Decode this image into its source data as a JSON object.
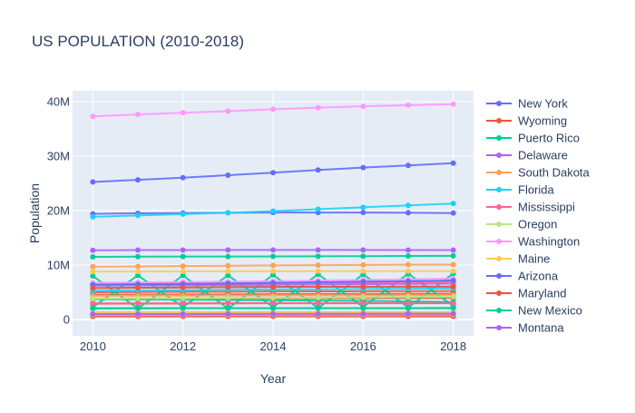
{
  "chart_data": {
    "type": "line",
    "title": "US POPULATION (2010-2018)",
    "xlabel": "Year",
    "ylabel": "Population",
    "x_range": [
      2009.55,
      2018.45
    ],
    "y_range": [
      -3000000,
      42000000
    ],
    "x_ticks": [
      {
        "value": 2010,
        "label": "2010"
      },
      {
        "value": 2012,
        "label": "2012"
      },
      {
        "value": 2014,
        "label": "2014"
      },
      {
        "value": 2016,
        "label": "2016"
      },
      {
        "value": 2018,
        "label": "2018"
      }
    ],
    "y_ticks": [
      {
        "value": 0,
        "label": "0"
      },
      {
        "value": 10000000,
        "label": "10M"
      },
      {
        "value": 20000000,
        "label": "20M"
      },
      {
        "value": 30000000,
        "label": "30M"
      },
      {
        "value": 40000000,
        "label": "40M"
      }
    ],
    "grid": true,
    "legend_position": "right",
    "x": [
      2010,
      2011,
      2012,
      2013,
      2014,
      2015,
      2016,
      2017,
      2018
    ],
    "legend": [
      "New York",
      "Wyoming",
      "Puerto Rico",
      "Delaware",
      "South Dakota",
      "Florida",
      "Mississippi",
      "Oregon",
      "Washington",
      "Maine",
      "Arizona",
      "Maryland",
      "New Mexico",
      "Montana"
    ],
    "series": [
      {
        "color": "#636efa",
        "values": [
          25250000,
          25650000,
          26050000,
          26500000,
          26950000,
          27450000,
          27900000,
          28300000,
          28700000
        ]
      },
      {
        "color": "#636efa",
        "values": [
          19400000,
          19500000,
          19550000,
          19600000,
          19650000,
          19650000,
          19650000,
          19600000,
          19550000
        ]
      },
      {
        "color": "#636efa",
        "values": [
          6400000,
          6470000,
          6550000,
          6630000,
          6730000,
          6830000,
          6930000,
          7020000,
          7150000
        ]
      },
      {
        "color": "#636efa",
        "values": [
          1340000,
          1340000,
          1335000,
          1330000,
          1330000,
          1330000,
          1335000,
          1335000,
          1340000
        ]
      },
      {
        "color": "#636efa",
        "values": [
          5770000,
          5830000,
          5880000,
          5930000,
          5970000,
          6010000,
          6030000,
          6050000,
          6050000
        ]
      },
      {
        "name": "Wyoming",
        "color": "#ef553b",
        "values": [
          560000,
          567000,
          576000,
          582000,
          584000,
          586000,
          585000,
          579000,
          578000
        ]
      },
      {
        "color": "#ef553b",
        "values": [
          5000000,
          5040000,
          5080000,
          5110000,
          5140000,
          5160000,
          5180000,
          5200000,
          5220000
        ]
      },
      {
        "color": "#ef553b",
        "values": [
          4550000,
          4570000,
          4590000,
          4610000,
          4640000,
          4660000,
          4690000,
          4710000,
          4730000
        ]
      },
      {
        "color": "#ef553b",
        "values": [
          2900000,
          2920000,
          2940000,
          2960000,
          2970000,
          2980000,
          2980000,
          2990000,
          3000000
        ]
      },
      {
        "color": "#ef553b",
        "values": [
          3830000,
          3840000,
          3850000,
          3860000,
          3880000,
          3900000,
          3920000,
          3930000,
          3950000
        ]
      },
      {
        "name": "Puerto Rico",
        "color": "#00cc96",
        "values": [
          3720000,
          3680000,
          3630000,
          3590000,
          3530000,
          3470000,
          3410000,
          3330000,
          3200000
        ]
      },
      {
        "color": "#00cc96",
        "values": [
          11500000,
          11550000,
          11560000,
          11570000,
          11590000,
          11610000,
          11630000,
          11660000,
          11690000
        ]
      },
      {
        "color": "#00cc96",
        "values": [
          2300000,
          8100000,
          2300000,
          8100000,
          2300000,
          8300000,
          2300000,
          8400000,
          2500000
        ]
      },
      {
        "color": "#00cc96",
        "values": [
          2050000,
          2070000,
          2080000,
          2085000,
          2085000,
          2085000,
          2090000,
          2090000,
          2095000
        ]
      },
      {
        "color": "#00cc96",
        "values": [
          8000000,
          2000000,
          8100000,
          2000000,
          8200000,
          2100000,
          8300000,
          2200000,
          8450000
        ]
      },
      {
        "name": "Delaware",
        "color": "#ab63fa",
        "values": [
          900000,
          907000,
          916000,
          925000,
          935000,
          944000,
          952000,
          961000,
          967000
        ]
      },
      {
        "color": "#ab63fa",
        "values": [
          12700000,
          12740000,
          12760000,
          12770000,
          12780000,
          12780000,
          12770000,
          12760000,
          12740000
        ]
      },
      {
        "color": "#ab63fa",
        "values": [
          6200000,
          6260000,
          6300000,
          6340000,
          6380000,
          6420000,
          6480000,
          6540000,
          6590000
        ]
      },
      {
        "name": "South Dakota",
        "color": "#ffa15a",
        "values": [
          815000,
          823000,
          833000,
          842000,
          849000,
          855000,
          862000,
          870000,
          882000
        ]
      },
      {
        "color": "#ffa15a",
        "values": [
          9700000,
          9760000,
          9820000,
          9880000,
          9930000,
          9980000,
          10020000,
          10060000,
          10090000
        ]
      },
      {
        "color": "#ffa15a",
        "values": [
          4340000,
          4370000,
          4380000,
          4400000,
          4410000,
          4430000,
          4440000,
          4450000,
          4470000
        ]
      },
      {
        "name": "Florida",
        "color": "#19d3f3",
        "values": [
          18850000,
          19100000,
          19350000,
          19600000,
          19900000,
          20250000,
          20600000,
          20950000,
          21300000
        ]
      },
      {
        "color": "#19d3f3",
        "values": [
          5300000,
          5350000,
          5400000,
          5450000,
          5500000,
          5550000,
          5600000,
          5650000,
          5700000
        ]
      },
      {
        "name": "Mississippi",
        "color": "#ff6692",
        "values": [
          2970000,
          2980000,
          2985000,
          2990000,
          2990000,
          2990000,
          2990000,
          2985000,
          2985000
        ]
      },
      {
        "color": "#ff6692",
        "values": [
          6550000,
          6590000,
          6620000,
          6650000,
          6680000,
          6710000,
          6740000,
          6790000,
          6830000
        ]
      },
      {
        "name": "Oregon",
        "color": "#b6e880",
        "values": [
          3840000,
          3870000,
          3900000,
          3930000,
          3970000,
          4020000,
          4090000,
          4150000,
          4190000
        ]
      },
      {
        "name": "Washington",
        "color": "#ff97ff",
        "values": [
          37300000,
          37650000,
          37950000,
          38250000,
          38600000,
          38900000,
          39150000,
          39350000,
          39550000
        ]
      },
      {
        "color": "#ff97ff",
        "values": [
          6740000,
          6820000,
          6890000,
          6960000,
          7050000,
          7160000,
          7280000,
          7400000,
          7530000
        ]
      },
      {
        "name": "Maine",
        "color": "#fecb52",
        "values": [
          1330000,
          1330000,
          1330000,
          1330000,
          1330000,
          1330000,
          1330000,
          1335000,
          1340000
        ]
      },
      {
        "color": "#fecb52",
        "values": [
          8800000,
          8820000,
          8840000,
          8850000,
          8860000,
          8870000,
          8880000,
          8880000,
          8880000
        ]
      },
      {
        "name": "Arizona",
        "color": "#636efa",
        "values": [
          6400000,
          6470000,
          6550000,
          6630000,
          6730000,
          6830000,
          6930000,
          7020000,
          7150000
        ]
      },
      {
        "name": "Maryland",
        "color": "#ef553b",
        "values": [
          5780000,
          5840000,
          5890000,
          5930000,
          5970000,
          6000000,
          6020000,
          6040000,
          6040000
        ]
      },
      {
        "name": "New Mexico",
        "color": "#00cc96",
        "values": [
          2060000,
          2070000,
          2080000,
          2085000,
          2085000,
          2085000,
          2090000,
          2090000,
          2095000
        ]
      },
      {
        "name": "Montana",
        "color": "#ab63fa",
        "values": [
          990000,
          997000,
          1003000,
          1012000,
          1022000,
          1032000,
          1042000,
          1053000,
          1062000
        ]
      }
    ]
  }
}
